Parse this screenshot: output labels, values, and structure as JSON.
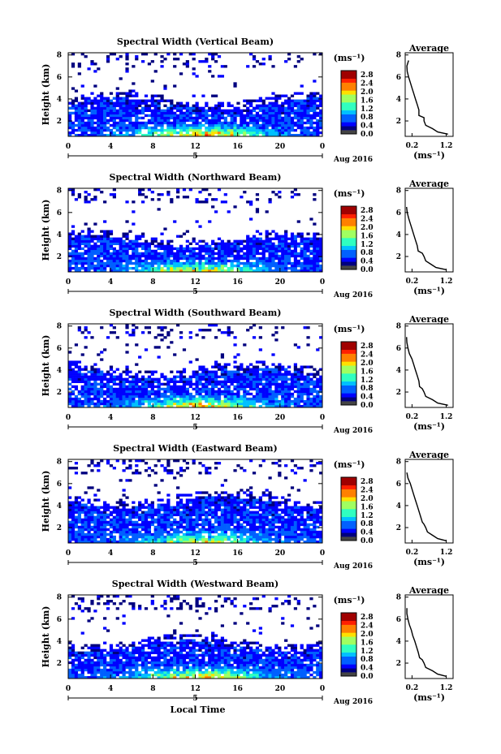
{
  "figure": {
    "xlabel": "Local Time",
    "date_label": "Aug 2016",
    "day_label": "5",
    "ylabel": "Height (km)",
    "colorbar_unit": "(ms⁻¹)",
    "avg_title": "Average",
    "avg_xlabel": "(ms⁻¹)"
  },
  "colors": {
    "jet": [
      "#00007f",
      "#0000ff",
      "#0060ff",
      "#00c0ff",
      "#30ffc0",
      "#a0ff60",
      "#ffe000",
      "#ff8000",
      "#ff2000",
      "#a00000"
    ],
    "lowest_bin": "#444444"
  },
  "chart_data": [
    {
      "type": "heatmap",
      "title": "Spectral Width (Vertical Beam)",
      "x_ticks": [
        "0",
        "4",
        "8",
        "12",
        "16",
        "20",
        "0"
      ],
      "xlim": [
        0,
        24
      ],
      "y_ticks": [
        "2",
        "4",
        "6",
        "8"
      ],
      "ylim": [
        0.6,
        8.2
      ],
      "colorbar": {
        "ticks": [
          "0.0",
          "0.4",
          "0.8",
          "1.2",
          "1.6",
          "2.0",
          "2.4",
          "2.8"
        ],
        "range": [
          0,
          3.0
        ]
      },
      "layer_top_km": 3.6,
      "peak_hour": 12.5,
      "peak_width": 0.75,
      "average_profile": {
        "title": "Average",
        "x_ticks": [
          "0.2",
          "1.2"
        ],
        "xlim": [
          0,
          1.4
        ],
        "y_ticks": [
          "2",
          "4",
          "6",
          "8"
        ],
        "ylim": [
          0.6,
          8.2
        ],
        "height_km": [
          0.8,
          1.0,
          1.3,
          1.6,
          2.0,
          2.3,
          2.5,
          3.0,
          3.5,
          4.0,
          4.5,
          5.0,
          5.5,
          6.0,
          6.5,
          7.0,
          7.5
        ],
        "width_ms": [
          1.25,
          0.95,
          0.8,
          0.6,
          0.55,
          0.55,
          0.4,
          0.4,
          0.35,
          0.3,
          0.25,
          0.2,
          0.15,
          0.1,
          0.06,
          0.05,
          0.1
        ]
      }
    },
    {
      "type": "heatmap",
      "title": "Spectral Width (Northward Beam)",
      "x_ticks": [
        "0",
        "4",
        "8",
        "12",
        "16",
        "20",
        "0"
      ],
      "xlim": [
        0,
        24
      ],
      "y_ticks": [
        "2",
        "4",
        "6",
        "8"
      ],
      "ylim": [
        0.6,
        8.2
      ],
      "colorbar": {
        "ticks": [
          "0.0",
          "0.4",
          "0.8",
          "1.2",
          "1.6",
          "2.0",
          "2.4",
          "2.8"
        ],
        "range": [
          0,
          3.0
        ]
      },
      "layer_top_km": 3.4,
      "peak_hour": 12.0,
      "peak_width": 0.6,
      "average_profile": {
        "title": "Average",
        "x_ticks": [
          "0.2",
          "1.2"
        ],
        "xlim": [
          0,
          1.4
        ],
        "y_ticks": [
          "2",
          "4",
          "6",
          "8"
        ],
        "ylim": [
          0.6,
          8.2
        ],
        "height_km": [
          0.8,
          1.0,
          1.3,
          1.6,
          2.0,
          2.3,
          2.5,
          3.0,
          3.5,
          4.0,
          4.5,
          5.0,
          5.5,
          6.0,
          6.5
        ],
        "width_ms": [
          1.2,
          0.9,
          0.75,
          0.6,
          0.55,
          0.5,
          0.38,
          0.35,
          0.3,
          0.25,
          0.2,
          0.15,
          0.1,
          0.06,
          0.04
        ]
      }
    },
    {
      "type": "heatmap",
      "title": "Spectral Width (Southward Beam)",
      "x_ticks": [
        "0",
        "4",
        "8",
        "12",
        "16",
        "20",
        "0"
      ],
      "xlim": [
        0,
        24
      ],
      "y_ticks": [
        "2",
        "4",
        "6",
        "8"
      ],
      "ylim": [
        0.6,
        8.2
      ],
      "colorbar": {
        "ticks": [
          "0.0",
          "0.4",
          "0.8",
          "1.2",
          "1.6",
          "2.0",
          "2.4",
          "2.8"
        ],
        "range": [
          0,
          3.0
        ]
      },
      "layer_top_km": 3.8,
      "peak_hour": 12.5,
      "peak_width": 0.65,
      "average_profile": {
        "title": "Average",
        "x_ticks": [
          "0.2",
          "1.2"
        ],
        "xlim": [
          0,
          1.4
        ],
        "y_ticks": [
          "2",
          "4",
          "6",
          "8"
        ],
        "ylim": [
          0.6,
          8.2
        ],
        "height_km": [
          0.8,
          1.0,
          1.3,
          1.6,
          2.0,
          2.3,
          2.5,
          3.0,
          3.5,
          4.0,
          4.5,
          5.0,
          5.5,
          6.0,
          6.5,
          7.0
        ],
        "width_ms": [
          1.25,
          0.95,
          0.8,
          0.6,
          0.55,
          0.5,
          0.42,
          0.4,
          0.35,
          0.3,
          0.25,
          0.2,
          0.12,
          0.08,
          0.05,
          0.04
        ]
      }
    },
    {
      "type": "heatmap",
      "title": "Spectral Width (Eastward Beam)",
      "x_ticks": [
        "0",
        "4",
        "8",
        "12",
        "16",
        "20",
        "0"
      ],
      "xlim": [
        0,
        24
      ],
      "y_ticks": [
        "2",
        "4",
        "6",
        "8"
      ],
      "ylim": [
        0.6,
        8.2
      ],
      "colorbar": {
        "ticks": [
          "0.0",
          "0.4",
          "0.8",
          "1.2",
          "1.6",
          "2.0",
          "2.4",
          "2.8"
        ],
        "range": [
          0,
          3.0
        ]
      },
      "layer_top_km": 4.3,
      "peak_hour": 12.5,
      "peak_width": 0.5,
      "average_profile": {
        "title": "Average",
        "x_ticks": [
          "0.2",
          "1.2"
        ],
        "xlim": [
          0,
          1.4
        ],
        "y_ticks": [
          "2",
          "4",
          "6",
          "8"
        ],
        "ylim": [
          0.6,
          8.2
        ],
        "height_km": [
          0.8,
          1.0,
          1.3,
          1.6,
          2.0,
          2.3,
          2.5,
          3.0,
          3.5,
          4.0,
          4.5,
          5.0,
          5.5,
          6.0,
          6.5,
          7.0
        ],
        "width_ms": [
          1.2,
          0.95,
          0.8,
          0.65,
          0.6,
          0.55,
          0.5,
          0.45,
          0.4,
          0.35,
          0.3,
          0.25,
          0.2,
          0.15,
          0.08,
          0.05
        ]
      }
    },
    {
      "type": "heatmap",
      "title": "Spectral Width (Westward Beam)",
      "x_ticks": [
        "0",
        "4",
        "8",
        "12",
        "16",
        "20",
        "0"
      ],
      "xlim": [
        0,
        24
      ],
      "y_ticks": [
        "2",
        "4",
        "6",
        "8"
      ],
      "ylim": [
        0.6,
        8.2
      ],
      "colorbar": {
        "ticks": [
          "0.0",
          "0.4",
          "0.8",
          "1.2",
          "1.6",
          "2.0",
          "2.4",
          "2.8"
        ],
        "range": [
          0,
          3.0
        ]
      },
      "layer_top_km": 3.6,
      "peak_hour": 12.5,
      "peak_width": 0.65,
      "average_profile": {
        "title": "Average",
        "x_ticks": [
          "0.2",
          "1.2"
        ],
        "xlim": [
          0,
          1.4
        ],
        "y_ticks": [
          "2",
          "4",
          "6",
          "8"
        ],
        "ylim": [
          0.6,
          8.2
        ],
        "height_km": [
          0.8,
          1.0,
          1.3,
          1.6,
          2.0,
          2.3,
          2.5,
          3.0,
          3.5,
          4.0,
          4.5,
          5.0,
          5.5,
          6.0,
          6.5,
          7.0
        ],
        "width_ms": [
          1.2,
          0.95,
          0.8,
          0.6,
          0.55,
          0.5,
          0.42,
          0.38,
          0.33,
          0.28,
          0.22,
          0.18,
          0.12,
          0.08,
          0.05,
          0.05
        ]
      }
    }
  ]
}
